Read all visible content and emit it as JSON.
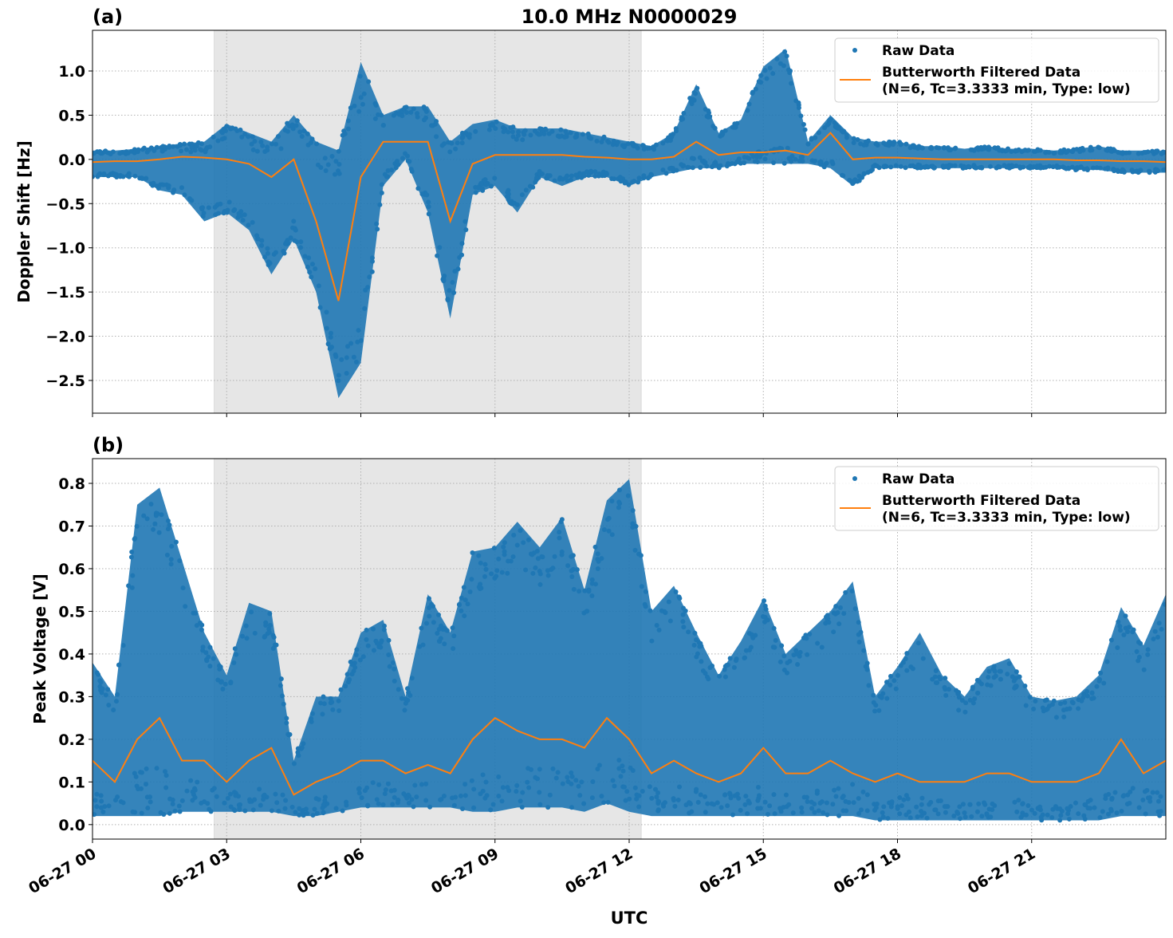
{
  "chart_data": [
    {
      "type": "scatter",
      "panel_label": "(a)",
      "title": "10.0 MHz N0000029",
      "xlabel": "",
      "ylabel": "Doppler Shift [Hz]",
      "xlim_hours": [
        0,
        24
      ],
      "ylim": [
        -2.87,
        1.46
      ],
      "yticks": [
        1.0,
        0.5,
        0.0,
        -0.5,
        -1.0,
        -1.5,
        -2.0,
        -2.5
      ],
      "ytick_labels": [
        "1.0",
        "0.5",
        "0.0",
        "−0.5",
        "−1.0",
        "−1.5",
        "−2.0",
        "−2.5"
      ],
      "xtick_hours": [
        0,
        3,
        6,
        9,
        12,
        15,
        18,
        21
      ],
      "grid": true,
      "shaded_span_hours": [
        2.72,
        12.27
      ],
      "legend_placement": "top-right",
      "legend": [
        "Raw Data",
        "Butterworth Filtered Data",
        "(N=6, Tc=3.3333 min, Type: low)"
      ],
      "series": [
        {
          "name": "Raw Data",
          "color": "#1f77b4",
          "x_hours": [
            0,
            0.5,
            1,
            1.5,
            2,
            2.5,
            3,
            3.5,
            4,
            4.5,
            5,
            5.5,
            6,
            6.5,
            7,
            7.5,
            8,
            8.5,
            9,
            9.5,
            10,
            10.5,
            11,
            11.5,
            12,
            12.5,
            13,
            13.5,
            14,
            14.5,
            15,
            15.5,
            16,
            16.5,
            17,
            17.5,
            18,
            18.5,
            19,
            19.5,
            20,
            20.5,
            21,
            21.5,
            22,
            22.5,
            23,
            23.5,
            24
          ],
          "lower": [
            -0.2,
            -0.2,
            -0.2,
            -0.35,
            -0.4,
            -0.7,
            -0.6,
            -0.8,
            -1.3,
            -0.9,
            -1.5,
            -2.7,
            -2.3,
            -0.3,
            0.0,
            -0.6,
            -1.8,
            -0.4,
            -0.3,
            -0.6,
            -0.2,
            -0.3,
            -0.2,
            -0.2,
            -0.3,
            -0.2,
            -0.15,
            -0.1,
            -0.1,
            -0.05,
            -0.05,
            -0.05,
            -0.05,
            -0.1,
            -0.3,
            -0.1,
            -0.1,
            -0.1,
            -0.1,
            -0.1,
            -0.1,
            -0.1,
            -0.1,
            -0.1,
            -0.12,
            -0.12,
            -0.15,
            -0.15,
            -0.15
          ],
          "upper": [
            0.1,
            0.1,
            0.12,
            0.15,
            0.18,
            0.2,
            0.4,
            0.3,
            0.2,
            0.5,
            0.2,
            0.1,
            1.1,
            0.5,
            0.6,
            0.6,
            0.2,
            0.4,
            0.45,
            0.35,
            0.35,
            0.35,
            0.3,
            0.25,
            0.2,
            0.15,
            0.3,
            0.85,
            0.3,
            0.45,
            1.05,
            1.25,
            0.2,
            0.5,
            0.25,
            0.2,
            0.2,
            0.15,
            0.15,
            0.12,
            0.15,
            0.12,
            0.12,
            0.1,
            0.12,
            0.15,
            0.1,
            0.1,
            0.1
          ]
        },
        {
          "name": "Butterworth Filtered Data",
          "color": "#ff7f0e",
          "x_hours": [
            0,
            0.5,
            1,
            1.5,
            2,
            2.5,
            3,
            3.5,
            4,
            4.5,
            5,
            5.5,
            6,
            6.5,
            7,
            7.5,
            8,
            8.5,
            9,
            9.5,
            10,
            10.5,
            11,
            11.5,
            12,
            12.5,
            13,
            13.5,
            14,
            14.5,
            15,
            15.5,
            16,
            16.5,
            17,
            17.5,
            18,
            18.5,
            19,
            19.5,
            20,
            20.5,
            21,
            21.5,
            22,
            22.5,
            23,
            23.5,
            24
          ],
          "values": [
            -0.03,
            -0.02,
            -0.02,
            0.0,
            0.03,
            0.02,
            0.0,
            -0.05,
            -0.2,
            0.0,
            -0.7,
            -1.6,
            -0.2,
            0.2,
            0.2,
            0.2,
            -0.7,
            -0.05,
            0.05,
            0.05,
            0.05,
            0.05,
            0.03,
            0.02,
            0.0,
            0.0,
            0.03,
            0.2,
            0.05,
            0.08,
            0.08,
            0.1,
            0.05,
            0.3,
            0.0,
            0.02,
            0.02,
            0.01,
            0.0,
            0.0,
            0.0,
            0.0,
            0.0,
            0.0,
            -0.01,
            -0.01,
            -0.02,
            -0.02,
            -0.03
          ]
        }
      ]
    },
    {
      "type": "scatter",
      "panel_label": "(b)",
      "title": "",
      "xlabel": "UTC",
      "ylabel": "Peak Voltage [V]",
      "xlim_hours": [
        0,
        24
      ],
      "ylim": [
        -0.034,
        0.858
      ],
      "yticks": [
        0.8,
        0.7,
        0.6,
        0.5,
        0.4,
        0.3,
        0.2,
        0.1,
        0.0
      ],
      "ytick_labels": [
        "0.8",
        "0.7",
        "0.6",
        "0.5",
        "0.4",
        "0.3",
        "0.2",
        "0.1",
        "0.0"
      ],
      "xtick_hours": [
        0,
        3,
        6,
        9,
        12,
        15,
        18,
        21
      ],
      "xtick_labels": [
        "06-27 00",
        "06-27 03",
        "06-27 06",
        "06-27 09",
        "06-27 12",
        "06-27 15",
        "06-27 18",
        "06-27 21"
      ],
      "grid": true,
      "shaded_span_hours": [
        2.72,
        12.27
      ],
      "legend_placement": "top-right",
      "legend": [
        "Raw Data",
        "Butterworth Filtered Data",
        "(N=6, Tc=3.3333 min, Type: low)"
      ],
      "series": [
        {
          "name": "Raw Data",
          "color": "#1f77b4",
          "x_hours": [
            0,
            0.5,
            1,
            1.5,
            2,
            2.5,
            3,
            3.5,
            4,
            4.5,
            5,
            5.5,
            6,
            6.5,
            7,
            7.5,
            8,
            8.5,
            9,
            9.5,
            10,
            10.5,
            11,
            11.5,
            12,
            12.5,
            13,
            13.5,
            14,
            14.5,
            15,
            15.5,
            16,
            16.5,
            17,
            17.5,
            18,
            18.5,
            19,
            19.5,
            20,
            20.5,
            21,
            21.5,
            22,
            22.5,
            23,
            23.5,
            24
          ],
          "lower": [
            0.02,
            0.02,
            0.02,
            0.02,
            0.03,
            0.03,
            0.03,
            0.03,
            0.03,
            0.02,
            0.02,
            0.03,
            0.04,
            0.04,
            0.04,
            0.04,
            0.04,
            0.03,
            0.03,
            0.04,
            0.04,
            0.04,
            0.03,
            0.05,
            0.03,
            0.02,
            0.02,
            0.02,
            0.02,
            0.02,
            0.02,
            0.02,
            0.02,
            0.02,
            0.02,
            0.01,
            0.01,
            0.01,
            0.01,
            0.01,
            0.01,
            0.01,
            0.01,
            0.01,
            0.01,
            0.01,
            0.02,
            0.02,
            0.02
          ],
          "upper": [
            0.38,
            0.3,
            0.75,
            0.79,
            0.62,
            0.45,
            0.35,
            0.52,
            0.5,
            0.15,
            0.3,
            0.3,
            0.45,
            0.48,
            0.3,
            0.54,
            0.45,
            0.64,
            0.65,
            0.71,
            0.65,
            0.72,
            0.55,
            0.76,
            0.81,
            0.5,
            0.56,
            0.45,
            0.35,
            0.43,
            0.53,
            0.4,
            0.45,
            0.5,
            0.57,
            0.3,
            0.37,
            0.45,
            0.35,
            0.3,
            0.37,
            0.39,
            0.3,
            0.29,
            0.3,
            0.35,
            0.51,
            0.42,
            0.54
          ]
        },
        {
          "name": "Butterworth Filtered Data",
          "color": "#ff7f0e",
          "x_hours": [
            0,
            0.5,
            1,
            1.5,
            2,
            2.5,
            3,
            3.5,
            4,
            4.5,
            5,
            5.5,
            6,
            6.5,
            7,
            7.5,
            8,
            8.5,
            9,
            9.5,
            10,
            10.5,
            11,
            11.5,
            12,
            12.5,
            13,
            13.5,
            14,
            14.5,
            15,
            15.5,
            16,
            16.5,
            17,
            17.5,
            18,
            18.5,
            19,
            19.5,
            20,
            20.5,
            21,
            21.5,
            22,
            22.5,
            23,
            23.5,
            24
          ],
          "values": [
            0.15,
            0.1,
            0.2,
            0.25,
            0.15,
            0.15,
            0.1,
            0.15,
            0.18,
            0.07,
            0.1,
            0.12,
            0.15,
            0.15,
            0.12,
            0.14,
            0.12,
            0.2,
            0.25,
            0.22,
            0.2,
            0.2,
            0.18,
            0.25,
            0.2,
            0.12,
            0.15,
            0.12,
            0.1,
            0.12,
            0.18,
            0.12,
            0.12,
            0.15,
            0.12,
            0.1,
            0.12,
            0.1,
            0.1,
            0.1,
            0.12,
            0.12,
            0.1,
            0.1,
            0.1,
            0.12,
            0.2,
            0.12,
            0.15
          ]
        }
      ]
    }
  ]
}
